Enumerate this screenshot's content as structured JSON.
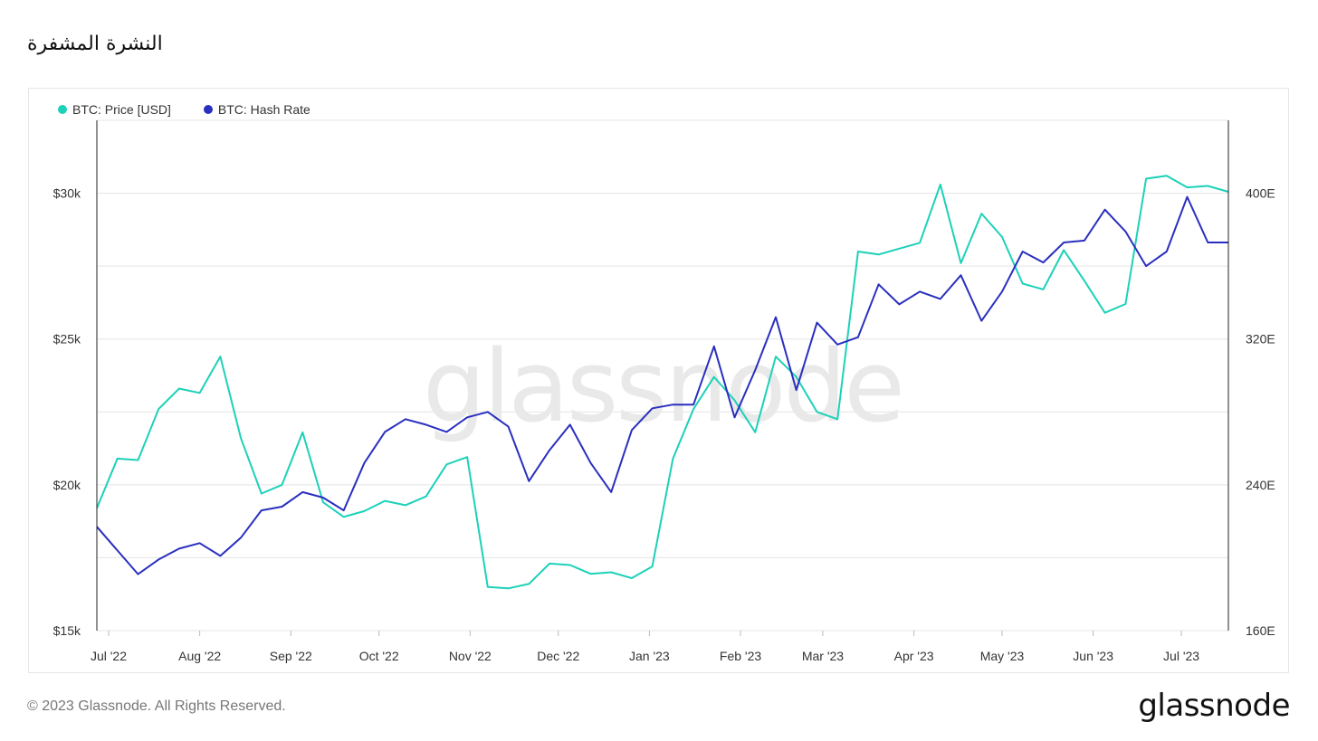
{
  "title": "النشرة المشفرة",
  "footer": {
    "copyright": "© 2023 Glassnode. All Rights Reserved.",
    "brand": "glassnode"
  },
  "watermark": "glassnode",
  "colors": {
    "price": "#1dd1b8",
    "hashrate": "#2a2fbf",
    "grid": "#e4e4e4",
    "axis": "#222222"
  },
  "chart_data": {
    "type": "line",
    "x_tick_labels": [
      "Jul '22",
      "Aug '22",
      "Sep '22",
      "Oct '22",
      "Nov '22",
      "Dec '22",
      "Jan '23",
      "Feb '23",
      "Mar '23",
      "Apr '23",
      "May '23",
      "Jun '23",
      "Jul '23"
    ],
    "x_tick_dates": [
      "2022-07-01",
      "2022-08-01",
      "2022-09-01",
      "2022-10-01",
      "2022-11-01",
      "2022-12-01",
      "2023-01-01",
      "2023-02-01",
      "2023-03-01",
      "2023-04-01",
      "2023-05-01",
      "2023-06-01",
      "2023-07-01"
    ],
    "x": [
      "2022-06-27",
      "2022-07-04",
      "2022-07-11",
      "2022-07-18",
      "2022-07-25",
      "2022-08-01",
      "2022-08-08",
      "2022-08-15",
      "2022-08-22",
      "2022-08-29",
      "2022-09-05",
      "2022-09-12",
      "2022-09-19",
      "2022-09-26",
      "2022-10-03",
      "2022-10-10",
      "2022-10-17",
      "2022-10-24",
      "2022-10-31",
      "2022-11-07",
      "2022-11-14",
      "2022-11-21",
      "2022-11-28",
      "2022-12-05",
      "2022-12-12",
      "2022-12-19",
      "2022-12-26",
      "2023-01-02",
      "2023-01-09",
      "2023-01-16",
      "2023-01-23",
      "2023-01-30",
      "2023-02-06",
      "2023-02-13",
      "2023-02-20",
      "2023-02-27",
      "2023-03-06",
      "2023-03-13",
      "2023-03-20",
      "2023-03-27",
      "2023-04-03",
      "2023-04-10",
      "2023-04-17",
      "2023-04-24",
      "2023-05-01",
      "2023-05-08",
      "2023-05-15",
      "2023-05-22",
      "2023-05-29",
      "2023-06-05",
      "2023-06-12",
      "2023-06-19",
      "2023-06-26",
      "2023-07-03",
      "2023-07-10",
      "2023-07-17"
    ],
    "y_left": {
      "ylim": [
        15000,
        32500
      ],
      "tick_values": [
        15000,
        20000,
        25000,
        30000
      ],
      "tick_labels": [
        "$15k",
        "$20k",
        "$25k",
        "$30k"
      ]
    },
    "y_right": {
      "ylim": [
        160,
        440
      ],
      "tick_values": [
        160,
        240,
        320,
        400
      ],
      "tick_labels": [
        "160E",
        "240E",
        "320E",
        "400E"
      ]
    },
    "grid": true,
    "legend_position": "top-left",
    "series": [
      {
        "name": "BTC: Price [USD]",
        "axis": "left",
        "values": [
          19200,
          20900,
          20850,
          22600,
          23300,
          23150,
          24400,
          21600,
          19700,
          20000,
          21800,
          19400,
          18900,
          19100,
          19450,
          19300,
          19600,
          20700,
          20950,
          16500,
          16450,
          16600,
          17300,
          17250,
          16950,
          17000,
          16800,
          17200,
          20900,
          22600,
          23700,
          22900,
          21800,
          24400,
          23700,
          22500,
          22250,
          28000,
          27900,
          28100,
          28300,
          30300,
          27600,
          29300,
          28500,
          26900,
          26700,
          28050,
          27000,
          25900,
          26200,
          30500,
          30600,
          30200,
          30250,
          30050
        ]
      },
      {
        "name": "BTC: Hash Rate",
        "axis": "right",
        "values": [
          217,
          204,
          191,
          199,
          205,
          208,
          201,
          211,
          226,
          228,
          236,
          233,
          226,
          252,
          269,
          276,
          273,
          269,
          277,
          280,
          272,
          242,
          259,
          273,
          252,
          236,
          270,
          282,
          284,
          284,
          316,
          277,
          303,
          332,
          292,
          329,
          317,
          321,
          350,
          339,
          346,
          342,
          355,
          330,
          346,
          368,
          362,
          373,
          374,
          391,
          379,
          360,
          368,
          398,
          373,
          373
        ]
      }
    ]
  }
}
